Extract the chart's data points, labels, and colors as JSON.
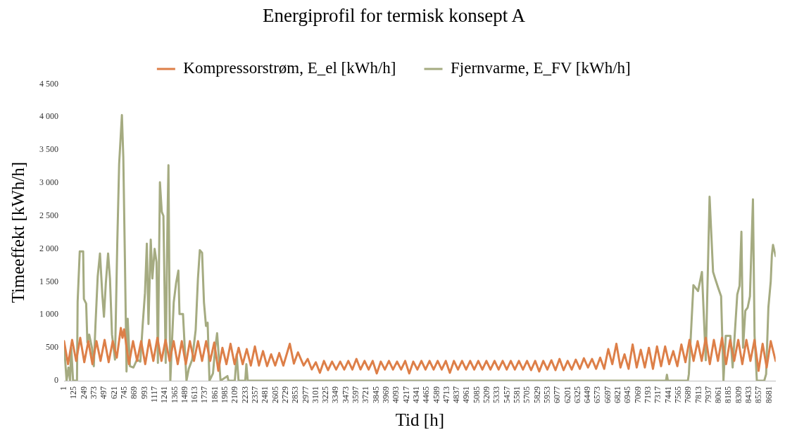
{
  "chart_data": {
    "type": "line",
    "title": "Energiprofil for termisk konsept A",
    "xlabel": "Tid [h]",
    "ylabel": "Timeeffekt [kWh/h]",
    "legend": "top",
    "grid": false,
    "marker": "none",
    "line_style": "solid",
    "xlim": [
      1,
      8760
    ],
    "xticks": [
      1,
      125,
      249,
      373,
      497,
      621,
      745,
      869,
      993,
      1117,
      1241,
      1365,
      1489,
      1613,
      1737,
      1861,
      1985,
      2109,
      2233,
      2357,
      2481,
      2605,
      2729,
      2853,
      2977,
      3101,
      3225,
      3349,
      3473,
      3597,
      3721,
      3845,
      3969,
      4093,
      4217,
      4341,
      4465,
      4589,
      4713,
      4837,
      4961,
      5085,
      5209,
      5333,
      5457,
      5581,
      5705,
      5829,
      5953,
      6077,
      6201,
      6325,
      6449,
      6573,
      6697,
      6821,
      6945,
      7069,
      7193,
      7317,
      7441,
      7565,
      7689,
      7813,
      7937,
      8061,
      8185,
      8309,
      8433,
      8557,
      8681
    ],
    "ylim": [
      0,
      4500
    ],
    "yticks": [
      0,
      500,
      {
        "value": 1000,
        "label": "1 000"
      },
      {
        "value": 1500,
        "label": "1 500"
      },
      {
        "value": 2000,
        "label": "2 000"
      },
      {
        "value": 2500,
        "label": "2 500"
      },
      {
        "value": 3000,
        "label": "3 000"
      },
      {
        "value": 3500,
        "label": "3 500"
      },
      {
        "value": 4000,
        "label": "4 000"
      },
      {
        "value": 4500,
        "label": "4 500"
      }
    ],
    "series": [
      {
        "name": "Kompressorstrøm, E_el [kWh/h]",
        "color": "#dd7f48",
        "x": [
          1,
          50,
          100,
          150,
          200,
          250,
          300,
          350,
          400,
          450,
          500,
          550,
          600,
          650,
          700,
          720,
          740,
          800,
          850,
          900,
          950,
          1000,
          1050,
          1100,
          1150,
          1200,
          1250,
          1300,
          1350,
          1400,
          1450,
          1500,
          1550,
          1600,
          1650,
          1700,
          1750,
          1800,
          1850,
          1900,
          1950,
          2000,
          2050,
          2100,
          2150,
          2200,
          2250,
          2300,
          2350,
          2400,
          2450,
          2500,
          2550,
          2600,
          2650,
          2700,
          2780,
          2830,
          2880,
          2950,
          3000,
          3050,
          3100,
          3150,
          3200,
          3250,
          3300,
          3350,
          3400,
          3450,
          3500,
          3550,
          3600,
          3650,
          3700,
          3750,
          3800,
          3850,
          3900,
          3950,
          4000,
          4050,
          4100,
          4150,
          4200,
          4250,
          4300,
          4350,
          4400,
          4450,
          4500,
          4550,
          4600,
          4650,
          4700,
          4750,
          4800,
          4850,
          4900,
          4950,
          5000,
          5050,
          5100,
          5150,
          5200,
          5250,
          5300,
          5350,
          5400,
          5450,
          5500,
          5550,
          5600,
          5650,
          5700,
          5750,
          5800,
          5850,
          5900,
          5950,
          6000,
          6050,
          6100,
          6150,
          6200,
          6250,
          6300,
          6350,
          6400,
          6450,
          6500,
          6550,
          6600,
          6650,
          6700,
          6750,
          6800,
          6850,
          6900,
          6950,
          7000,
          7050,
          7100,
          7150,
          7200,
          7250,
          7300,
          7350,
          7400,
          7450,
          7500,
          7550,
          7600,
          7650,
          7700,
          7750,
          7800,
          7850,
          7900,
          7950,
          8000,
          8050,
          8100,
          8150,
          8200,
          8250,
          8300,
          8350,
          8400,
          8450,
          8500,
          8550,
          8600,
          8650,
          8700,
          8760
        ],
        "values": [
          600,
          250,
          620,
          300,
          650,
          280,
          600,
          250,
          600,
          300,
          620,
          280,
          600,
          350,
          800,
          650,
          780,
          250,
          600,
          300,
          600,
          250,
          620,
          300,
          650,
          300,
          620,
          300,
          600,
          250,
          600,
          250,
          600,
          300,
          600,
          300,
          600,
          300,
          580,
          150,
          500,
          250,
          560,
          250,
          500,
          250,
          480,
          230,
          520,
          230,
          450,
          220,
          400,
          230,
          420,
          230,
          560,
          260,
          430,
          230,
          330,
          170,
          280,
          120,
          300,
          160,
          290,
          170,
          290,
          170,
          300,
          170,
          330,
          170,
          300,
          170,
          300,
          110,
          290,
          170,
          300,
          170,
          290,
          170,
          300,
          110,
          290,
          170,
          300,
          170,
          300,
          170,
          300,
          170,
          300,
          120,
          300,
          170,
          300,
          170,
          300,
          170,
          300,
          170,
          300,
          170,
          300,
          170,
          300,
          170,
          300,
          170,
          300,
          170,
          300,
          160,
          300,
          140,
          300,
          170,
          310,
          160,
          330,
          160,
          300,
          170,
          320,
          180,
          340,
          200,
          330,
          180,
          350,
          180,
          480,
          250,
          560,
          200,
          400,
          180,
          550,
          200,
          470,
          200,
          500,
          180,
          520,
          220,
          520,
          250,
          450,
          220,
          550,
          280,
          620,
          300,
          600,
          300,
          650,
          250,
          620,
          300,
          650,
          250,
          620,
          300,
          620,
          250,
          620,
          300,
          620,
          150,
          560,
          200,
          600,
          300
        ]
      },
      {
        "name": "Fjernvarme, E_FV [kWh/h]",
        "color": "#a5ab81",
        "x": [
          1,
          32,
          55,
          75,
          89,
          112,
          160,
          168,
          194,
          236,
          245,
          273,
          288,
          310,
          344,
          367,
          387,
          415,
          443,
          472,
          492,
          515,
          543,
          566,
          591,
          628,
          656,
          679,
          713,
          730,
          750,
          770,
          784,
          812,
          855,
          898,
          940,
          969,
          997,
          1020,
          1040,
          1068,
          1088,
          1116,
          1139,
          1156,
          1181,
          1204,
          1224,
          1252,
          1275,
          1286,
          1300,
          1309,
          1351,
          1380,
          1408,
          1422,
          1465,
          1508,
          1536,
          1578,
          1621,
          1649,
          1672,
          1700,
          1723,
          1748,
          1768,
          1791,
          1834,
          1862,
          1885,
          1927,
          2012,
          2024,
          2103,
          2126,
          2149,
          2231,
          2245,
          2262,
          7410,
          7422,
          7434,
          7680,
          7692,
          7748,
          7805,
          7853,
          7900,
          7947,
          7990,
          8018,
          8055,
          8089,
          8118,
          8146,
          8203,
          8231,
          8288,
          8316,
          8339,
          8359,
          8387,
          8416,
          8444,
          8481,
          8501,
          8529,
          8620,
          8643,
          8671,
          8700,
          8714,
          8728,
          8760
        ],
        "values": [
          550,
          0,
          200,
          0,
          500,
          0,
          0,
          1200,
          1960,
          1960,
          1240,
          1170,
          580,
          700,
          500,
          220,
          830,
          1580,
          1930,
          1300,
          970,
          1480,
          1930,
          1550,
          700,
          320,
          2090,
          3290,
          4030,
          3400,
          1840,
          140,
          940,
          220,
          200,
          320,
          290,
          850,
          1330,
          2080,
          860,
          2140,
          1550,
          2000,
          1800,
          270,
          3010,
          2560,
          2500,
          270,
          2500,
          3270,
          1040,
          0,
          1190,
          1480,
          1670,
          1010,
          1010,
          0,
          180,
          320,
          770,
          1550,
          1980,
          1940,
          1190,
          830,
          880,
          0,
          110,
          500,
          720,
          0,
          70,
          0,
          0,
          400,
          0,
          0,
          250,
          0,
          0,
          90,
          0,
          0,
          100,
          1450,
          1360,
          1650,
          310,
          2790,
          1650,
          1540,
          1400,
          1280,
          0,
          680,
          680,
          200,
          1310,
          1440,
          2260,
          500,
          1060,
          1110,
          1280,
          2750,
          680,
          0,
          0,
          100,
          1110,
          1510,
          1910,
          2060,
          1890
        ]
      }
    ]
  }
}
